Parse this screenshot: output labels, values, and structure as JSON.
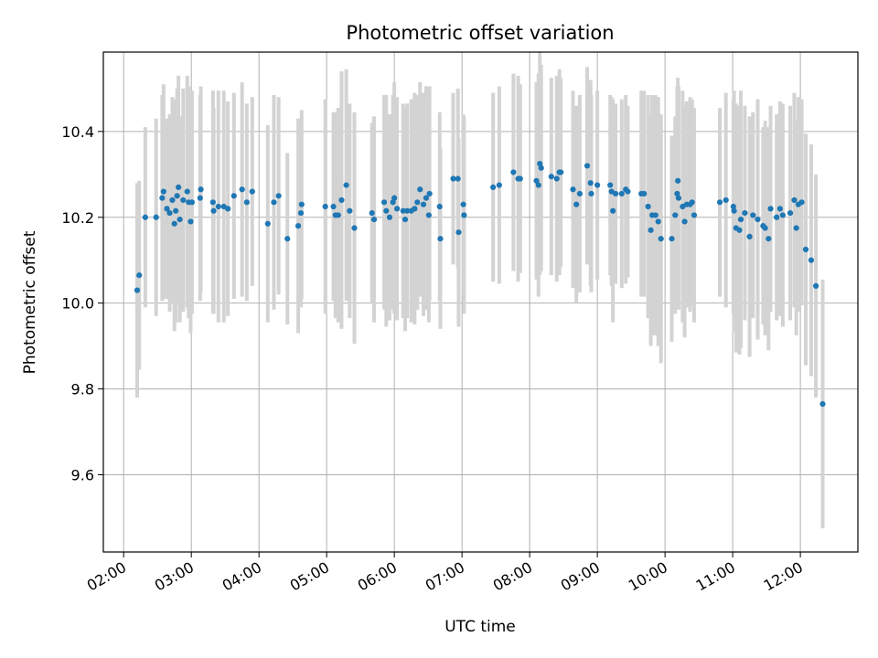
{
  "chart_data": {
    "type": "scatter",
    "title": "Photometric offset variation",
    "xlabel": "UTC time",
    "ylabel": "Photometric offset",
    "x_tick_labels": [
      "02:00",
      "03:00",
      "04:00",
      "05:00",
      "06:00",
      "07:00",
      "08:00",
      "09:00",
      "10:00",
      "11:00",
      "12:00"
    ],
    "y_tick_labels": [
      "9.6",
      "9.8",
      "10.0",
      "10.2",
      "10.4"
    ],
    "x_ticks_hours": [
      2,
      3,
      4,
      5,
      6,
      7,
      8,
      9,
      10,
      11,
      12
    ],
    "y_ticks": [
      9.6,
      9.8,
      10.0,
      10.2,
      10.4
    ],
    "xlim_hours": [
      1.7,
      12.85
    ],
    "ylim": [
      9.42,
      10.585
    ],
    "grid": true,
    "colors": {
      "points": "#1f77b4",
      "errorbars": "#d3d3d3",
      "grid": "#b0b0b0"
    },
    "points": [
      [
        2.2,
        10.03,
        0.25
      ],
      [
        2.23,
        10.065,
        0.22
      ],
      [
        2.32,
        10.2,
        0.21
      ],
      [
        2.48,
        10.2,
        0.23
      ],
      [
        2.57,
        10.245,
        0.24
      ],
      [
        2.59,
        10.26,
        0.25
      ],
      [
        2.64,
        10.22,
        0.21
      ],
      [
        2.68,
        10.21,
        0.23
      ],
      [
        2.72,
        10.24,
        0.24
      ],
      [
        2.75,
        10.185,
        0.25
      ],
      [
        2.77,
        10.215,
        0.26
      ],
      [
        2.79,
        10.25,
        0.25
      ],
      [
        2.81,
        10.27,
        0.26
      ],
      [
        2.83,
        10.195,
        0.24
      ],
      [
        2.88,
        10.24,
        0.26
      ],
      [
        2.94,
        10.26,
        0.27
      ],
      [
        2.96,
        10.235,
        0.27
      ],
      [
        2.99,
        10.19,
        0.26
      ],
      [
        3.01,
        10.235,
        0.26
      ],
      [
        3.13,
        10.245,
        0.24
      ],
      [
        3.14,
        10.265,
        0.24
      ],
      [
        3.32,
        10.235,
        0.26
      ],
      [
        3.33,
        10.215,
        0.24
      ],
      [
        3.4,
        10.225,
        0.27
      ],
      [
        3.48,
        10.225,
        0.27
      ],
      [
        3.54,
        10.22,
        0.25
      ],
      [
        3.63,
        10.25,
        0.24
      ],
      [
        3.75,
        10.265,
        0.25
      ],
      [
        3.82,
        10.235,
        0.23
      ],
      [
        3.9,
        10.26,
        0.22
      ],
      [
        4.13,
        10.185,
        0.23
      ],
      [
        4.22,
        10.235,
        0.25
      ],
      [
        4.29,
        10.25,
        0.23
      ],
      [
        4.42,
        10.15,
        0.2
      ],
      [
        4.58,
        10.18,
        0.25
      ],
      [
        4.62,
        10.21,
        0.22
      ],
      [
        4.63,
        10.23,
        0.22
      ],
      [
        4.98,
        10.225,
        0.25
      ],
      [
        5.1,
        10.225,
        0.22
      ],
      [
        5.13,
        10.205,
        0.24
      ],
      [
        5.17,
        10.205,
        0.25
      ],
      [
        5.22,
        10.24,
        0.3
      ],
      [
        5.29,
        10.275,
        0.27
      ],
      [
        5.34,
        10.215,
        0.25
      ],
      [
        5.41,
        10.175,
        0.27
      ],
      [
        5.67,
        10.21,
        0.21
      ],
      [
        5.7,
        10.195,
        0.24
      ],
      [
        5.85,
        10.235,
        0.25
      ],
      [
        5.88,
        10.215,
        0.27
      ],
      [
        5.93,
        10.2,
        0.24
      ],
      [
        5.98,
        10.235,
        0.25
      ],
      [
        6.0,
        10.245,
        0.27
      ],
      [
        6.04,
        10.22,
        0.26
      ],
      [
        6.13,
        10.215,
        0.25
      ],
      [
        6.16,
        10.195,
        0.26
      ],
      [
        6.19,
        10.215,
        0.25
      ],
      [
        6.25,
        10.215,
        0.26
      ],
      [
        6.3,
        10.22,
        0.27
      ],
      [
        6.34,
        10.235,
        0.25
      ],
      [
        6.38,
        10.265,
        0.25
      ],
      [
        6.43,
        10.23,
        0.26
      ],
      [
        6.47,
        10.245,
        0.26
      ],
      [
        6.51,
        10.205,
        0.25
      ],
      [
        6.52,
        10.255,
        0.25
      ],
      [
        6.67,
        10.225,
        0.22
      ],
      [
        6.68,
        10.15,
        0.21
      ],
      [
        6.87,
        10.29,
        0.2
      ],
      [
        6.94,
        10.29,
        0.21
      ],
      [
        6.95,
        10.165,
        0.22
      ],
      [
        7.02,
        10.23,
        0.21
      ],
      [
        7.03,
        10.205,
        0.23
      ],
      [
        7.46,
        10.27,
        0.22
      ],
      [
        7.55,
        10.275,
        0.23
      ],
      [
        7.76,
        10.305,
        0.23
      ],
      [
        7.83,
        10.29,
        0.24
      ],
      [
        7.86,
        10.29,
        0.22
      ],
      [
        8.1,
        10.285,
        0.23
      ],
      [
        8.13,
        10.275,
        0.26
      ],
      [
        8.15,
        10.325,
        0.26
      ],
      [
        8.17,
        10.315,
        0.24
      ],
      [
        8.32,
        10.295,
        0.23
      ],
      [
        8.4,
        10.29,
        0.24
      ],
      [
        8.44,
        10.305,
        0.24
      ],
      [
        8.46,
        10.305,
        0.22
      ],
      [
        8.64,
        10.265,
        0.23
      ],
      [
        8.69,
        10.23,
        0.23
      ],
      [
        8.74,
        10.255,
        0.23
      ],
      [
        8.85,
        10.32,
        0.23
      ],
      [
        8.9,
        10.28,
        0.24
      ],
      [
        8.91,
        10.255,
        0.23
      ],
      [
        9.0,
        10.275,
        0.22
      ],
      [
        9.19,
        10.275,
        0.21
      ],
      [
        9.21,
        10.26,
        0.22
      ],
      [
        9.23,
        10.215,
        0.26
      ],
      [
        9.27,
        10.255,
        0.21
      ],
      [
        9.36,
        10.255,
        0.22
      ],
      [
        9.42,
        10.265,
        0.22
      ],
      [
        9.45,
        10.26,
        0.2
      ],
      [
        9.65,
        10.255,
        0.24
      ],
      [
        9.69,
        10.255,
        0.24
      ],
      [
        9.75,
        10.225,
        0.26
      ],
      [
        9.79,
        10.17,
        0.27
      ],
      [
        9.81,
        10.205,
        0.28
      ],
      [
        9.86,
        10.205,
        0.28
      ],
      [
        9.9,
        10.19,
        0.29
      ],
      [
        9.94,
        10.15,
        0.29
      ],
      [
        10.1,
        10.15,
        0.24
      ],
      [
        10.15,
        10.205,
        0.23
      ],
      [
        10.18,
        10.255,
        0.25
      ],
      [
        10.19,
        10.285,
        0.24
      ],
      [
        10.2,
        10.245,
        0.26
      ],
      [
        10.26,
        10.225,
        0.27
      ],
      [
        10.29,
        10.19,
        0.27
      ],
      [
        10.32,
        10.23,
        0.24
      ],
      [
        10.37,
        10.23,
        0.25
      ],
      [
        10.4,
        10.235,
        0.24
      ],
      [
        10.43,
        10.205,
        0.25
      ],
      [
        10.81,
        10.235,
        0.22
      ],
      [
        10.9,
        10.24,
        0.25
      ],
      [
        11.01,
        10.225,
        0.25
      ],
      [
        11.02,
        10.215,
        0.28
      ],
      [
        11.05,
        10.175,
        0.29
      ],
      [
        11.1,
        10.17,
        0.29
      ],
      [
        11.12,
        10.195,
        0.3
      ],
      [
        11.18,
        10.21,
        0.25
      ],
      [
        11.25,
        10.155,
        0.28
      ],
      [
        11.3,
        10.205,
        0.24
      ],
      [
        11.37,
        10.195,
        0.28
      ],
      [
        11.45,
        10.18,
        0.23
      ],
      [
        11.48,
        10.175,
        0.25
      ],
      [
        11.53,
        10.15,
        0.26
      ],
      [
        11.56,
        10.22,
        0.24
      ],
      [
        11.65,
        10.2,
        0.24
      ],
      [
        11.7,
        10.22,
        0.25
      ],
      [
        11.74,
        10.205,
        0.26
      ],
      [
        11.85,
        10.21,
        0.25
      ],
      [
        11.91,
        10.24,
        0.25
      ],
      [
        11.94,
        10.175,
        0.25
      ],
      [
        11.97,
        10.23,
        0.25
      ],
      [
        12.02,
        10.235,
        0.24
      ],
      [
        12.08,
        10.125,
        0.27
      ],
      [
        12.16,
        10.1,
        0.27
      ],
      [
        12.23,
        10.04,
        0.26
      ],
      [
        12.33,
        9.765,
        0.29
      ]
    ]
  }
}
